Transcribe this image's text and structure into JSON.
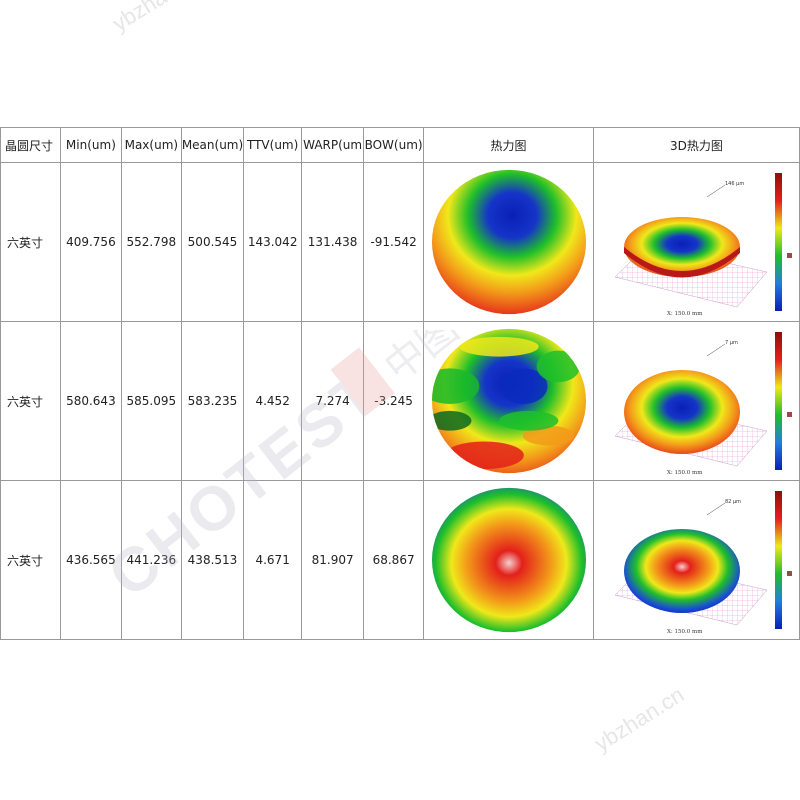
{
  "watermarks": {
    "top": "ybzhan.cn",
    "bottom": "ybzhan.cn",
    "center": "CHOTEST 中图仪器"
  },
  "table": {
    "headers": [
      "晶圆尺寸",
      "Min(um)",
      "Max(um)",
      "Mean(um)",
      "TTV(um)",
      "WARP(um",
      "BOW(um)",
      "热力图",
      "3D热力图"
    ],
    "rows": [
      {
        "size": "六英寸",
        "min": "409.756",
        "max": "552.798",
        "mean": "500.545",
        "ttv": "143.042",
        "warp": "131.438",
        "bow": "-91.542",
        "map_pattern": "dome-blue-center",
        "peak_label": "146 µm",
        "x_label": "X: 150.0 mm"
      },
      {
        "size": "六英寸",
        "min": "580.643",
        "max": "585.095",
        "mean": "583.235",
        "ttv": "4.452",
        "warp": "7.274",
        "bow": "-3.245",
        "map_pattern": "irregular-mixed",
        "peak_label": "7 µm",
        "x_label": "X: 150.0 mm"
      },
      {
        "size": "六英寸",
        "min": "436.565",
        "max": "441.236",
        "mean": "438.513",
        "ttv": "4.671",
        "warp": "81.907",
        "bow": "68.867",
        "map_pattern": "dome-red-center",
        "peak_label": "82 µm",
        "x_label": "X: 150.0 mm"
      }
    ]
  },
  "colors": {
    "blue": "#0a1fb5",
    "green": "#1fbf2a",
    "yellow": "#f0e81a",
    "orange": "#f39a1a",
    "red": "#e3201b",
    "border": "#9a9a9a"
  }
}
